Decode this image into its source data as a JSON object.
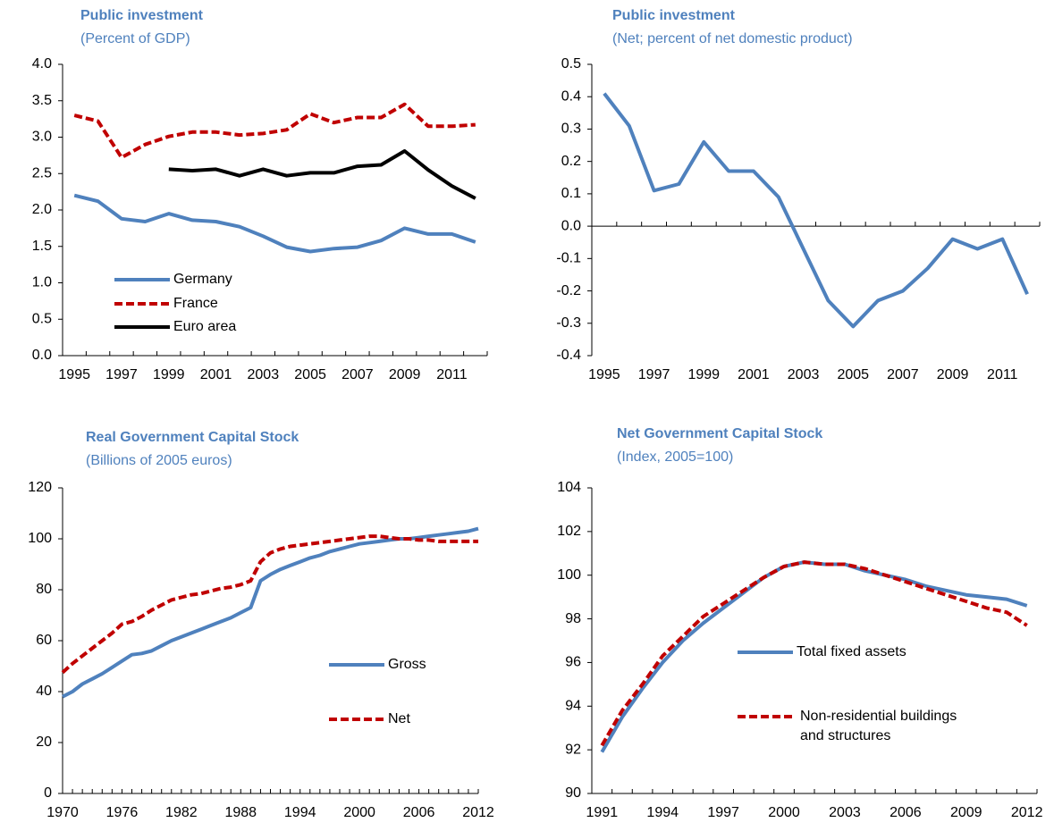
{
  "chart_data": [
    {
      "type": "line",
      "title": "Public investment",
      "subtitle": "(Percent of GDP)",
      "categories": [
        "1995",
        null,
        "1997",
        null,
        "1999",
        null,
        "2001",
        null,
        "2003",
        null,
        "2005",
        null,
        "2007",
        null,
        "2009",
        null,
        "2011",
        null
      ],
      "series": [
        {
          "name": "Germany",
          "color": "#4f81bd",
          "style": "solid",
          "values": [
            2.2,
            2.12,
            1.88,
            1.84,
            1.95,
            1.86,
            1.84,
            1.77,
            1.64,
            1.49,
            1.43,
            1.47,
            1.49,
            1.58,
            1.75,
            1.67,
            1.67,
            1.56
          ]
        },
        {
          "name": "France",
          "color": "#c00000",
          "style": "dashed",
          "values": [
            3.3,
            3.22,
            2.72,
            2.9,
            3.01,
            3.07,
            3.07,
            3.03,
            3.05,
            3.1,
            3.32,
            3.2,
            3.27,
            3.27,
            3.45,
            3.15,
            3.15,
            3.17
          ]
        },
        {
          "name": "Euro area",
          "color": "#000000",
          "style": "solid",
          "values": [
            null,
            null,
            null,
            null,
            2.56,
            2.54,
            2.56,
            2.47,
            2.56,
            2.47,
            2.51,
            2.51,
            2.6,
            2.62,
            2.81,
            2.55,
            2.33,
            2.16
          ]
        }
      ],
      "ylim": [
        0,
        4
      ],
      "yticks": [
        {
          "value": 0,
          "label": "0.0"
        },
        0.5,
        {
          "value": 1,
          "label": "1.0"
        },
        1.5,
        {
          "value": 2,
          "label": "2.0"
        },
        2.5,
        {
          "value": 3,
          "label": "3.0"
        },
        3.5,
        {
          "value": 4,
          "label": "4.0"
        }
      ]
    },
    {
      "type": "line",
      "title": "Public investment",
      "subtitle": "(Net; percent of net domestic product)",
      "categories": [
        "1995",
        null,
        "1997",
        null,
        "1999",
        null,
        "2001",
        null,
        "2003",
        null,
        "2005",
        null,
        "2007",
        null,
        "2009",
        null,
        "2011",
        null
      ],
      "series": [
        {
          "color": "#4f81bd",
          "style": "solid",
          "values": [
            0.41,
            0.31,
            0.11,
            0.13,
            0.26,
            0.17,
            0.17,
            0.09,
            -0.07,
            -0.23,
            -0.31,
            -0.23,
            -0.2,
            -0.13,
            -0.04,
            -0.07,
            -0.04,
            -0.21
          ]
        }
      ],
      "ylim": [
        -0.4,
        0.5
      ],
      "yticks": [
        -0.4,
        -0.3,
        -0.2,
        -0.1,
        {
          "value": 0,
          "label": "0.0"
        },
        0.1,
        0.2,
        0.3,
        0.4,
        0.5
      ]
    },
    {
      "type": "line",
      "title": "Real Government Capital Stock",
      "subtitle": "(Billions of 2005 euros)",
      "categories": [
        "1970",
        null,
        null,
        null,
        null,
        null,
        "1976",
        null,
        null,
        null,
        null,
        null,
        "1982",
        null,
        null,
        null,
        null,
        null,
        "1988",
        null,
        null,
        null,
        null,
        null,
        "1994",
        null,
        null,
        null,
        null,
        null,
        "2000",
        null,
        null,
        null,
        null,
        null,
        "2006",
        null,
        null,
        null,
        null,
        null,
        "2012"
      ],
      "series": [
        {
          "name": "Gross",
          "color": "#4f81bd",
          "style": "solid",
          "values": [
            38,
            40,
            43,
            45,
            47,
            49.5,
            52,
            54.5,
            55,
            56,
            58,
            60,
            61.5,
            63,
            64.5,
            66,
            67.5,
            69,
            71,
            73,
            83.5,
            86,
            88,
            89.5,
            91,
            92.5,
            93.5,
            95,
            96,
            97,
            98,
            98.5,
            99,
            99.5,
            100,
            100,
            100.5,
            101,
            101.5,
            102,
            102.5,
            103,
            104
          ]
        },
        {
          "name": "Net",
          "color": "#c00000",
          "style": "dashed",
          "values": [
            47.5,
            51,
            54,
            57,
            60,
            63,
            66.5,
            67.5,
            69.5,
            72,
            74,
            76,
            77,
            78,
            78.5,
            79.5,
            80.5,
            81,
            82,
            83.5,
            91,
            94.5,
            96,
            97,
            97.5,
            98,
            98.5,
            99,
            99.5,
            100,
            100.5,
            101,
            101,
            100.5,
            100,
            100,
            99.5,
            99.5,
            99,
            99,
            99,
            99,
            99
          ]
        }
      ],
      "ylim": [
        0,
        120
      ],
      "yticks": [
        0,
        20,
        40,
        60,
        80,
        100,
        120
      ]
    },
    {
      "type": "line",
      "title": "Net Government Capital Stock",
      "subtitle": "(Index, 2005=100)",
      "categories": [
        "1991",
        null,
        null,
        "1994",
        null,
        null,
        "1997",
        null,
        null,
        "2000",
        null,
        null,
        "2003",
        null,
        null,
        "2006",
        null,
        null,
        "2009",
        null,
        null,
        "2012"
      ],
      "series": [
        {
          "name": "Total fixed assets",
          "color": "#4f81bd",
          "style": "solid",
          "values": [
            91.9,
            93.5,
            94.8,
            96.0,
            97.0,
            97.8,
            98.5,
            99.2,
            99.9,
            100.4,
            100.6,
            100.5,
            100.5,
            100.2,
            100.0,
            99.8,
            99.5,
            99.3,
            99.1,
            99.0,
            98.9,
            98.6
          ]
        },
        {
          "name": "Non-residential buildings and structures",
          "color": "#c00000",
          "style": "dashed",
          "values": [
            92.2,
            93.8,
            95.0,
            96.3,
            97.2,
            98.1,
            98.7,
            99.3,
            99.9,
            100.4,
            100.6,
            100.5,
            100.5,
            100.3,
            100.0,
            99.7,
            99.4,
            99.1,
            98.8,
            98.5,
            98.3,
            97.7
          ]
        }
      ],
      "ylim": [
        90,
        104
      ],
      "yticks": [
        90,
        92,
        94,
        96,
        98,
        100,
        102,
        104
      ]
    }
  ]
}
